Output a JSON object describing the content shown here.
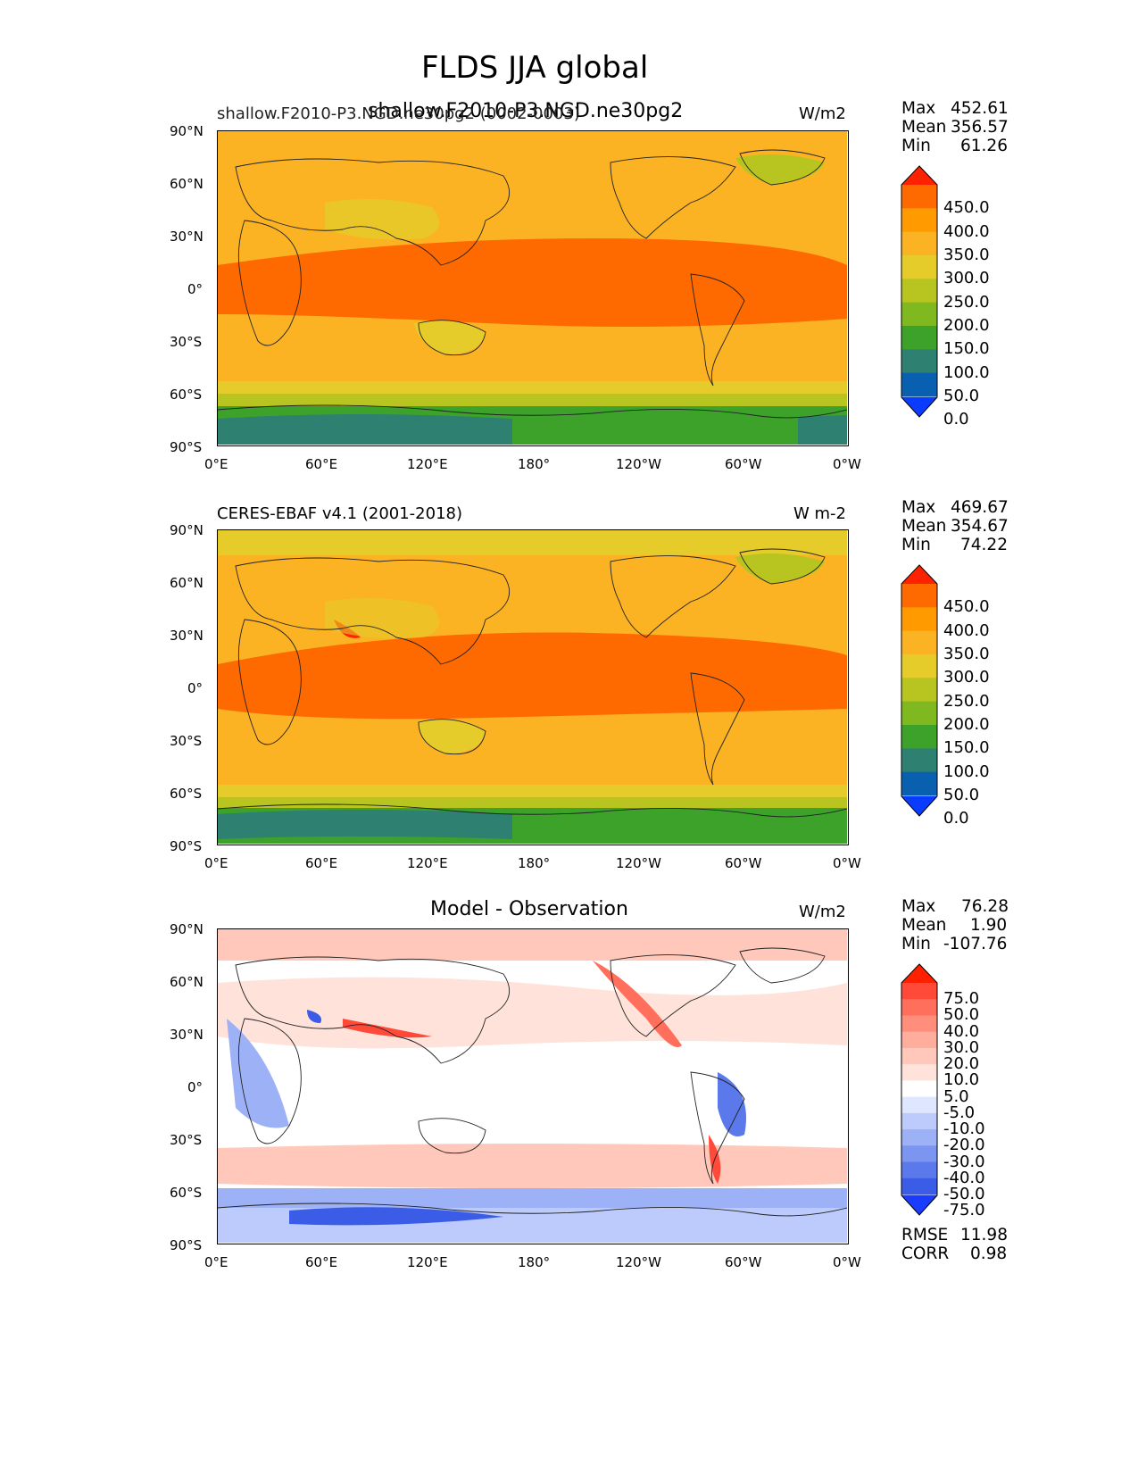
{
  "title": "FLDS JJA global",
  "panels": [
    {
      "id": "model",
      "left_title": "shallow.F2010-P3.NGD.ne30pg2 (0002-0003)",
      "center_title": "shallow.F2010-P3.NGD.ne30pg2",
      "units": "W/m2",
      "stats": [
        {
          "label": "Max",
          "value": "452.61"
        },
        {
          "label": "Mean",
          "value": "356.57"
        },
        {
          "label": "Min",
          "value": "61.26"
        }
      ]
    },
    {
      "id": "obs",
      "left_title": "CERES-EBAF v4.1 (2001-2018)",
      "center_title": "",
      "units": "W m-2",
      "stats": [
        {
          "label": "Max",
          "value": "469.67"
        },
        {
          "label": "Mean",
          "value": "354.67"
        },
        {
          "label": "Min",
          "value": "74.22"
        }
      ]
    },
    {
      "id": "diff",
      "left_title": "",
      "center_title": "Model - Observation",
      "units": "W/m2",
      "stats": [
        {
          "label": "Max",
          "value": "76.28"
        },
        {
          "label": "Mean",
          "value": "1.90"
        },
        {
          "label": "Min",
          "value": "-107.76"
        }
      ],
      "extra_stats": [
        {
          "label": "RMSE",
          "value": "11.98"
        },
        {
          "label": "CORR",
          "value": "0.98"
        }
      ]
    }
  ],
  "axes": {
    "lat_ticks": [
      "90°N",
      "60°N",
      "30°N",
      "0°",
      "30°S",
      "60°S",
      "90°S"
    ],
    "lon_ticks": [
      "0°E",
      "60°E",
      "120°E",
      "180°",
      "120°W",
      "60°W",
      "0°W"
    ]
  },
  "colorbars": {
    "field": {
      "labels": [
        "450.0",
        "400.0",
        "350.0",
        "300.0",
        "250.0",
        "200.0",
        "150.0",
        "100.0",
        "50.0",
        "0.0"
      ],
      "colors": [
        "#ff2200",
        "#ff6a00",
        "#ff9a00",
        "#fbb324",
        "#e6cc2a",
        "#b8c41f",
        "#7fb81f",
        "#3ca22a",
        "#2e8070",
        "#0a60b0",
        "#0a3cff"
      ]
    },
    "diff": {
      "labels": [
        "75.0",
        "50.0",
        "40.0",
        "30.0",
        "20.0",
        "10.0",
        "5.0",
        "-5.0",
        "-10.0",
        "-20.0",
        "-30.0",
        "-40.0",
        "-50.0",
        "-75.0"
      ],
      "colors": [
        "#ff2000",
        "#ff4a3a",
        "#ff6f5c",
        "#ff8f7c",
        "#ffad9c",
        "#ffc8bb",
        "#ffe2da",
        "#ffffff",
        "#dfe6ff",
        "#bccbfb",
        "#9db1f6",
        "#7b95f1",
        "#5b79eb",
        "#3b5ce6",
        "#1a3cff"
      ]
    }
  }
}
